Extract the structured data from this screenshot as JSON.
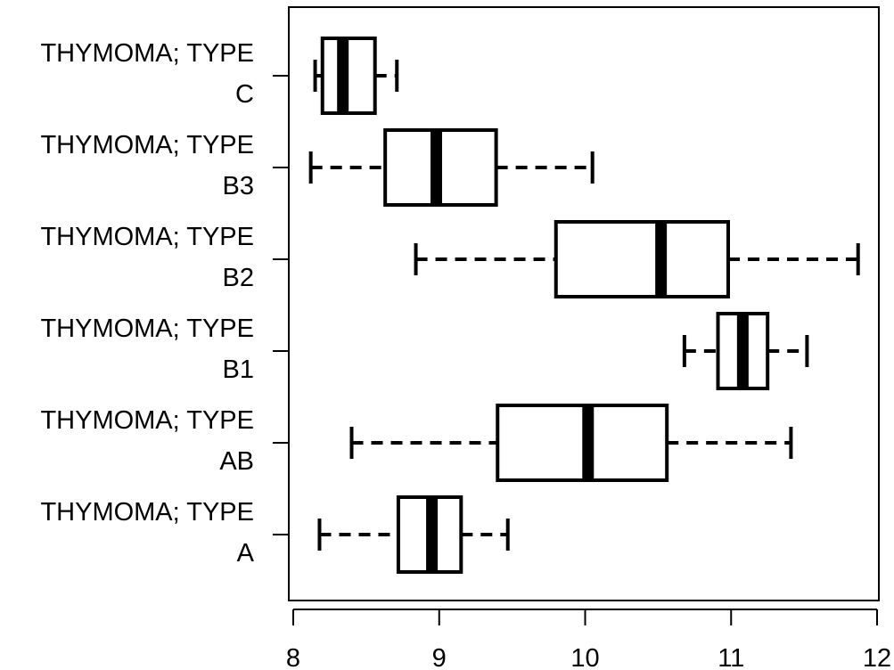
{
  "chart_data": {
    "type": "boxplot",
    "orientation": "horizontal",
    "title": "",
    "xlabel": "",
    "ylabel": "",
    "xlim": [
      8,
      12
    ],
    "x_ticks": [
      8,
      9,
      10,
      11,
      12
    ],
    "x_tick_labels": [
      "8",
      "9",
      "10",
      "11",
      "12"
    ],
    "categories": [
      {
        "line1": "THYMOMA; TYPE",
        "line2": "A"
      },
      {
        "line1": "THYMOMA; TYPE",
        "line2": "AB"
      },
      {
        "line1": "THYMOMA; TYPE",
        "line2": "B1"
      },
      {
        "line1": "THYMOMA; TYPE",
        "line2": "B2"
      },
      {
        "line1": "THYMOMA; TYPE",
        "line2": "B3"
      },
      {
        "line1": "THYMOMA; TYPE",
        "line2": "C"
      }
    ],
    "boxes": [
      {
        "whisker_low": 8.18,
        "q1": 8.72,
        "median": 8.95,
        "q3": 9.15,
        "whisker_high": 9.47
      },
      {
        "whisker_low": 8.4,
        "q1": 9.4,
        "median": 10.02,
        "q3": 10.56,
        "whisker_high": 11.41
      },
      {
        "whisker_low": 10.68,
        "q1": 10.91,
        "median": 11.08,
        "q3": 11.25,
        "whisker_high": 11.52
      },
      {
        "whisker_low": 8.84,
        "q1": 9.8,
        "median": 10.52,
        "q3": 10.98,
        "whisker_high": 11.87
      },
      {
        "whisker_low": 8.12,
        "q1": 8.63,
        "median": 8.98,
        "q3": 9.39,
        "whisker_high": 10.05
      },
      {
        "whisker_low": 8.15,
        "q1": 8.2,
        "median": 8.34,
        "q3": 8.56,
        "whisker_high": 8.71
      }
    ],
    "grid": false,
    "legend": "none"
  }
}
